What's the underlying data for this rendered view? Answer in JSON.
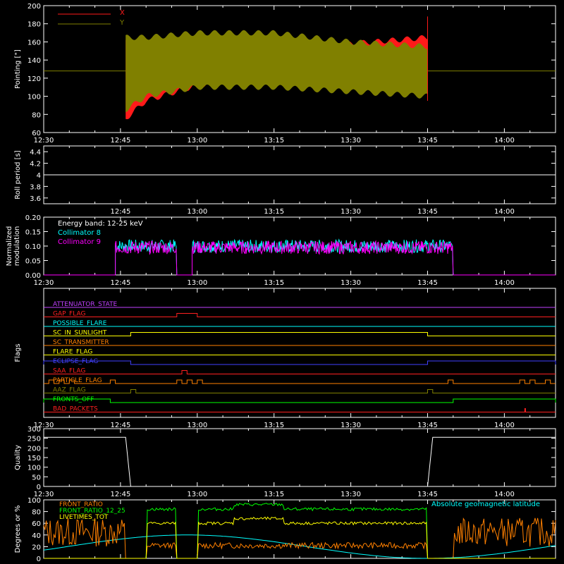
{
  "chart_data": [
    {
      "type": "area",
      "id": "pointing",
      "ylabel": "Pointing [\"]",
      "ylim": [
        60,
        200
      ],
      "yticks": [
        60,
        80,
        100,
        120,
        140,
        160,
        180,
        200
      ],
      "xticks": [
        "12:30",
        "12:45",
        "13:00",
        "13:15",
        "13:30",
        "13:45",
        "14:00"
      ],
      "series": [
        {
          "name": "X",
          "color": "#ff1a1a",
          "active_start": "12:46",
          "active_end": "13:45",
          "envelope_top": [
            {
              "t": "12:46",
              "v": 162
            },
            {
              "t": "12:50",
              "v": 150
            },
            {
              "t": "13:00",
              "v": 148
            },
            {
              "t": "13:15",
              "v": 152
            },
            {
              "t": "13:30",
              "v": 158
            },
            {
              "t": "13:45",
              "v": 165
            }
          ],
          "envelope_bottom": [
            {
              "t": "12:46",
              "v": 75
            },
            {
              "t": "12:50",
              "v": 95
            },
            {
              "t": "13:00",
              "v": 112
            },
            {
              "t": "13:15",
              "v": 118
            },
            {
              "t": "13:30",
              "v": 118
            },
            {
              "t": "13:45",
              "v": 115
            }
          ]
        },
        {
          "name": "Y",
          "color": "#808000",
          "baseline": 128,
          "active_start": "12:46",
          "active_end": "13:45",
          "envelope_top": [
            {
              "t": "12:46",
              "v": 165
            },
            {
              "t": "12:50",
              "v": 165
            },
            {
              "t": "13:00",
              "v": 170
            },
            {
              "t": "13:15",
              "v": 170
            },
            {
              "t": "13:30",
              "v": 160
            },
            {
              "t": "13:45",
              "v": 155
            }
          ],
          "envelope_bottom": [
            {
              "t": "12:46",
              "v": 85
            },
            {
              "t": "12:50",
              "v": 100
            },
            {
              "t": "13:00",
              "v": 110
            },
            {
              "t": "13:15",
              "v": 110
            },
            {
              "t": "13:30",
              "v": 105
            },
            {
              "t": "13:45",
              "v": 100
            }
          ]
        }
      ]
    },
    {
      "type": "line",
      "id": "roll",
      "ylabel": "Roll period [s]",
      "ylim": [
        3.5,
        4.5
      ],
      "yticks": [
        3.6,
        3.8,
        4.0,
        4.2,
        4.4
      ],
      "xticks": [
        "12:45",
        "13:00",
        "13:15",
        "13:30",
        "13:45",
        "14:00"
      ],
      "series": [
        {
          "color": "#ffffff",
          "value": 4.0
        }
      ]
    },
    {
      "type": "line",
      "id": "modulation",
      "ylabel": [
        "Normalized",
        "modulation"
      ],
      "ylim": [
        0,
        0.2
      ],
      "yticks": [
        "0.00",
        "0.05",
        "0.10",
        "0.15",
        "0.20"
      ],
      "xticks": [
        "12:30",
        "12:45",
        "13:00",
        "13:15",
        "13:30",
        "13:45",
        "14:00"
      ],
      "legend_title": "Energy band: 12-25 keV",
      "series": [
        {
          "name": "Collimator 8",
          "color": "#00ffff",
          "mean": 0.1,
          "segments": [
            [
              "12:44",
              "12:56"
            ],
            [
              "12:59",
              "13:50"
            ]
          ]
        },
        {
          "name": "Collimator 9",
          "color": "#ff00ff",
          "mean": 0.095,
          "segments": [
            [
              "12:44",
              "12:56"
            ],
            [
              "12:59",
              "13:50"
            ]
          ]
        }
      ]
    },
    {
      "type": "line",
      "id": "flags",
      "ylabel": "Flags",
      "xticks": [
        "12:30",
        "12:45",
        "13:00",
        "13:15",
        "13:30",
        "13:45",
        "14:00"
      ],
      "flags": [
        {
          "name": "ATTENUATOR_STATE",
          "color": "#c040ff",
          "high": []
        },
        {
          "name": "GAP_FLAG",
          "color": "#ff2020",
          "high": [
            [
              "12:56",
              "13:00"
            ]
          ]
        },
        {
          "name": "POSSIBLE_FLARE",
          "color": "#00ffff",
          "high": []
        },
        {
          "name": "SC_IN_SUNLIGHT",
          "color": "#ffff00",
          "high": [
            [
              "12:47",
              "13:45"
            ]
          ]
        },
        {
          "name": "SC_TRANSMITTER",
          "color": "#ff8000",
          "high": []
        },
        {
          "name": "FLARE_FLAG",
          "color": "#ffff00",
          "high": []
        },
        {
          "name": "ECLIPSE_FLAG",
          "color": "#4040ff",
          "high": [
            [
              "12:30",
              "12:47"
            ],
            [
              "13:45",
              "14:10"
            ]
          ]
        },
        {
          "name": "SAA_FLAG",
          "color": "#ff2020",
          "high": [
            [
              "12:57",
              "12:58"
            ]
          ]
        },
        {
          "name": "PARTICLE_FLAG",
          "color": "#ff8000",
          "high": [
            [
              "12:31",
              "12:32"
            ],
            [
              "12:33",
              "12:34"
            ],
            [
              "12:35",
              "12:36"
            ],
            [
              "12:43",
              "12:44"
            ],
            [
              "12:56",
              "12:57"
            ],
            [
              "12:58",
              "12:59"
            ],
            [
              "13:00",
              "13:01"
            ],
            [
              "13:49",
              "13:50"
            ],
            [
              "14:03",
              "14:04"
            ],
            [
              "14:05",
              "14:06"
            ],
            [
              "14:08",
              "14:09"
            ]
          ]
        },
        {
          "name": "AAZ_FLAG",
          "color": "#808000",
          "high": [
            [
              "12:47",
              "12:48"
            ],
            [
              "13:45",
              "13:46"
            ]
          ]
        },
        {
          "name": "FRONTS_OFF",
          "color": "#00ff00",
          "high": [
            [
              "12:30",
              "12:43"
            ],
            [
              "13:50",
              "14:10"
            ]
          ]
        },
        {
          "name": "BAD_PACKETS",
          "color": "#ff2020",
          "high": [
            [
              "14:04",
              "14:04"
            ]
          ]
        }
      ]
    },
    {
      "type": "line",
      "id": "quality",
      "ylabel": "Quality",
      "ylim": [
        0,
        300
      ],
      "yticks": [
        0,
        50,
        100,
        150,
        200,
        250,
        300
      ],
      "xticks": [
        "12:30",
        "12:45",
        "13:00",
        "13:15",
        "13:30",
        "13:45",
        "14:00"
      ],
      "series": [
        {
          "color": "#ffffff",
          "points": [
            [
              "12:30",
              255
            ],
            [
              "12:46",
              255
            ],
            [
              "12:47",
              0
            ],
            [
              "13:45",
              0
            ],
            [
              "13:46",
              255
            ],
            [
              "14:10",
              255
            ]
          ]
        }
      ]
    },
    {
      "type": "line",
      "id": "geo",
      "ylabel": "Degrees or %",
      "ylim": [
        0,
        100
      ],
      "yticks": [
        0,
        20,
        40,
        60,
        80,
        100
      ],
      "annotation": "Absolute geomagnetic latitude",
      "series": [
        {
          "name": "FRONT_RATIO",
          "color": "#ff8000",
          "level": 22
        },
        {
          "name": "FRONT_RATIO_12_25",
          "color": "#00ff00",
          "level": 84
        },
        {
          "name": "LIVETIMES_TOT",
          "color": "#ffff00",
          "level": 60
        },
        {
          "name": "Absolute geomagnetic latitude",
          "color": "#00ffff"
        }
      ]
    }
  ],
  "colors": {
    "bg": "#000000",
    "fg": "#ffffff"
  }
}
